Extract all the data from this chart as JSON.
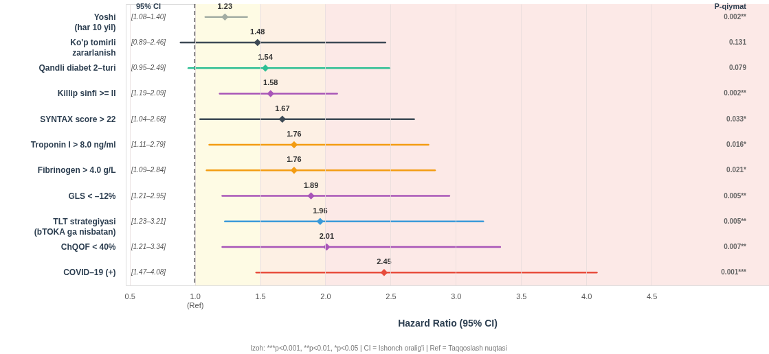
{
  "chart_data": {
    "type": "scatter",
    "orientation": "horizontal",
    "xlabel": "Hazard Ratio (95% CI)",
    "categories": [
      "Yoshi\n(har 10 yil)",
      "Ko'p tomirli\nzararlanish",
      "Qandli diabet 2–turi",
      "Killip sinfi >= II",
      "SYNTAX score > 22",
      "Troponin I > 8.0 ng/ml",
      "Fibrinogen > 4.0 g/L",
      "GLS < –12%",
      "TLT strategiyasi\n(bTOKA ga nisbatan)",
      "ChQOF < 40%",
      "COVID–19 (+)"
    ],
    "values": [
      1.23,
      1.48,
      1.54,
      1.58,
      1.67,
      1.76,
      1.76,
      1.89,
      1.96,
      2.01,
      2.45
    ],
    "errors": [
      [
        1.08,
        1.4
      ],
      [
        0.89,
        2.46
      ],
      [
        0.95,
        2.49
      ],
      [
        1.19,
        2.09
      ],
      [
        1.04,
        2.68
      ],
      [
        1.11,
        2.79
      ],
      [
        1.09,
        2.84
      ],
      [
        1.21,
        2.95
      ],
      [
        1.23,
        3.21
      ],
      [
        1.21,
        3.34
      ],
      [
        1.47,
        4.08
      ]
    ],
    "colors": [
      "#a3ada3",
      "#3d4a55",
      "#2fbf94",
      "#a855b8",
      "#3d4a55",
      "#f39c12",
      "#f39c12",
      "#a855b8",
      "#3a9ad9",
      "#a855b8",
      "#e74c3c"
    ],
    "data_labels": true,
    "marker": "diamond",
    "grid": "x",
    "xlim": [
      0.47,
      5.4
    ],
    "xticks": [
      0.5,
      {
        "value": 1,
        "label": "1.0\n(Ref)"
      },
      1.5,
      {
        "value": 2,
        "label": "2.0"
      },
      2.5,
      {
        "value": 3,
        "label": "3.0"
      },
      3.5,
      {
        "value": 4,
        "label": "4.0"
      },
      4.5
    ],
    "ref_lines": [
      {
        "axis": "x",
        "value": 1.0,
        "color": "#555555",
        "line_style": "dashed"
      }
    ],
    "bands": [
      {
        "axis": "x",
        "from": 1.0,
        "to": 1.5,
        "color": "#fefbe4"
      },
      {
        "axis": "x",
        "from": 1.5,
        "to": 2.0,
        "color": "#fdf0e4"
      },
      {
        "axis": "x",
        "from": 2.0,
        "to": 5.4,
        "color": "#fce9e7"
      }
    ],
    "annotations": [
      "95% CI",
      "P-qiymat",
      "Izoh: ***p<0.001, **p<0.01, *p<0.05 | CI = Ishonch oralig'i | Ref = Taqqoslash nuqtasi",
      "[1.08–1.40]",
      "0.002**",
      "[0.89–2.46]",
      "0.131",
      "[0.95–2.49]",
      "0.079",
      "[1.19–2.09]",
      "0.002**",
      "[1.04–2.68]",
      "0.033*",
      "[1.11–2.79]",
      "0.016*",
      "[1.09–2.84]",
      "0.021*",
      "[1.21–2.95]",
      "0.005**",
      "[1.23–3.21]",
      "0.005**",
      "[1.21–3.34]",
      "0.007**",
      "[1.47–4.08]",
      "0.001***"
    ]
  }
}
